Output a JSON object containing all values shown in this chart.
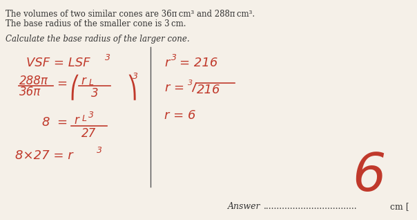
{
  "bg_color": "#f5f0e8",
  "text_color": "#333333",
  "red_color": "#c0392b",
  "title_line1": "The volumes of two similar cones are 36π cm³ and 288π cm³.",
  "title_line2": "The base radius of the smaller cone is 3 cm.",
  "question": "Calculate the base radius of the larger cone.",
  "answer_label": "Answer",
  "answer_value": "6",
  "answer_unit": "cm ["
}
